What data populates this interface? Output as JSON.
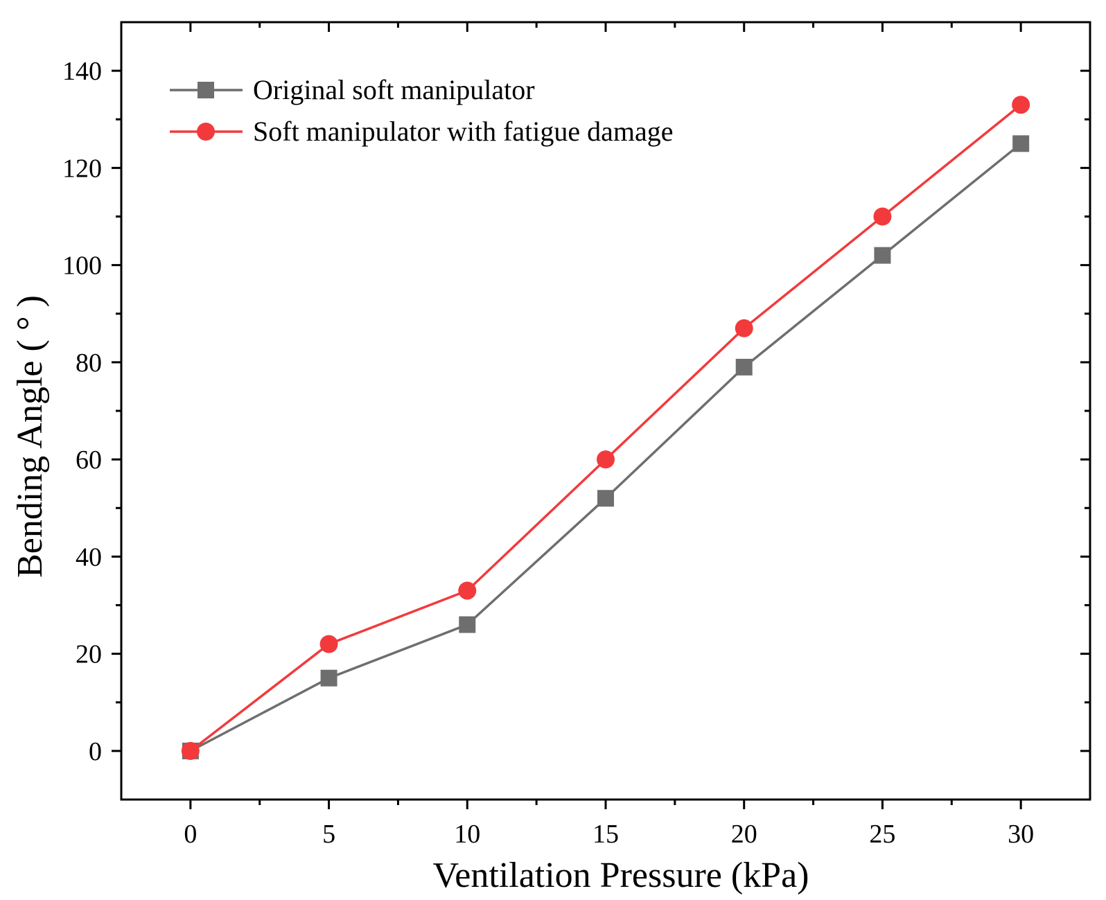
{
  "chart_data": {
    "type": "line",
    "title": "",
    "xlabel": "Ventilation Pressure (kPa)",
    "ylabel": "Bending Angle ( ° )",
    "x": [
      0,
      5,
      10,
      15,
      20,
      25,
      30
    ],
    "xticks": [
      0,
      5,
      10,
      15,
      20,
      25,
      30
    ],
    "yticks": [
      0,
      20,
      40,
      60,
      80,
      100,
      120,
      140
    ],
    "xlim": [
      -2.5,
      32.5
    ],
    "ylim": [
      -10,
      150
    ],
    "grid": false,
    "legend_position": "top-left",
    "series": [
      {
        "name": "Original soft manipulator",
        "marker": "square",
        "color": "#6e6e6e",
        "values": [
          0,
          15,
          26,
          52,
          79,
          102,
          125
        ]
      },
      {
        "name": "Soft manipulator with fatigue damage",
        "marker": "circle",
        "color": "#f23a3c",
        "values": [
          0,
          22,
          33,
          60,
          87,
          110,
          133
        ]
      }
    ]
  }
}
